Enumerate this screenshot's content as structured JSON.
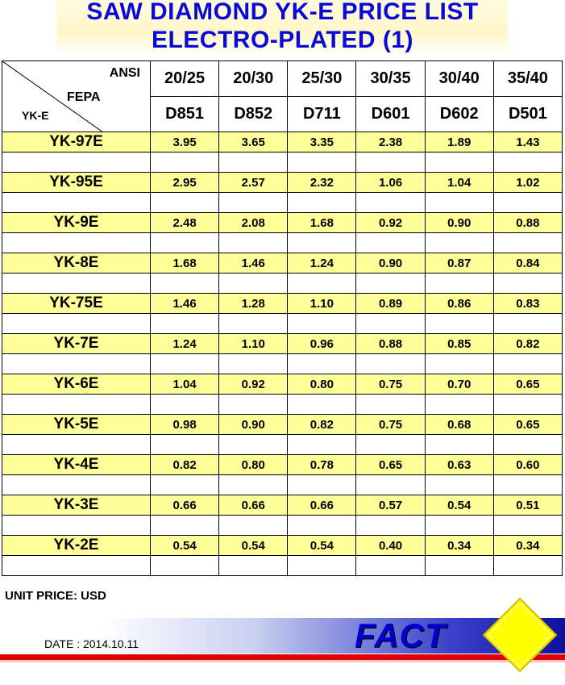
{
  "title": {
    "line1": "SAW DIAMOND YK-E PRICE LIST",
    "line2": "ELECTRO-PLATED (1)"
  },
  "table": {
    "corner": {
      "ansi": "ANSI",
      "fepa": "FEPA",
      "yke": "YK-E"
    },
    "ansi": [
      "20/25",
      "20/30",
      "25/30",
      "30/35",
      "30/40",
      "35/40"
    ],
    "fepa": [
      "D851",
      "D852",
      "D711",
      "D601",
      "D602",
      "D501"
    ],
    "rows": [
      {
        "name": "YK-97E",
        "prices": [
          "3.95",
          "3.65",
          "3.35",
          "2.38",
          "1.89",
          "1.43"
        ]
      },
      {
        "name": "YK-95E",
        "prices": [
          "2.95",
          "2.57",
          "2.32",
          "1.06",
          "1.04",
          "1.02"
        ]
      },
      {
        "name": "YK-9E",
        "prices": [
          "2.48",
          "2.08",
          "1.68",
          "0.92",
          "0.90",
          "0.88"
        ]
      },
      {
        "name": "YK-8E",
        "prices": [
          "1.68",
          "1.46",
          "1.24",
          "0.90",
          "0.87",
          "0.84"
        ]
      },
      {
        "name": "YK-75E",
        "prices": [
          "1.46",
          "1.28",
          "1.10",
          "0.89",
          "0.86",
          "0.83"
        ]
      },
      {
        "name": "YK-7E",
        "prices": [
          "1.24",
          "1.10",
          "0.96",
          "0.88",
          "0.85",
          "0.82"
        ]
      },
      {
        "name": "YK-6E",
        "prices": [
          "1.04",
          "0.92",
          "0.80",
          "0.75",
          "0.70",
          "0.65"
        ]
      },
      {
        "name": "YK-5E",
        "prices": [
          "0.98",
          "0.90",
          "0.82",
          "0.75",
          "0.68",
          "0.65"
        ]
      },
      {
        "name": "YK-4E",
        "prices": [
          "0.82",
          "0.80",
          "0.78",
          "0.65",
          "0.63",
          "0.60"
        ]
      },
      {
        "name": "YK-3E",
        "prices": [
          "0.66",
          "0.66",
          "0.66",
          "0.57",
          "0.54",
          "0.51"
        ]
      },
      {
        "name": "YK-2E",
        "prices": [
          "0.54",
          "0.54",
          "0.54",
          "0.40",
          "0.34",
          "0.34"
        ]
      }
    ]
  },
  "footer": {
    "unit_price": "UNIT PRICE: USD",
    "date": "DATE : 2014.10.11",
    "logo": "FACT"
  },
  "colors": {
    "title": "#0a0ad8",
    "row_highlight": "#ffff99",
    "logo": "#0000cc",
    "diamond": "#ffff00",
    "stripe": "#e00000"
  }
}
